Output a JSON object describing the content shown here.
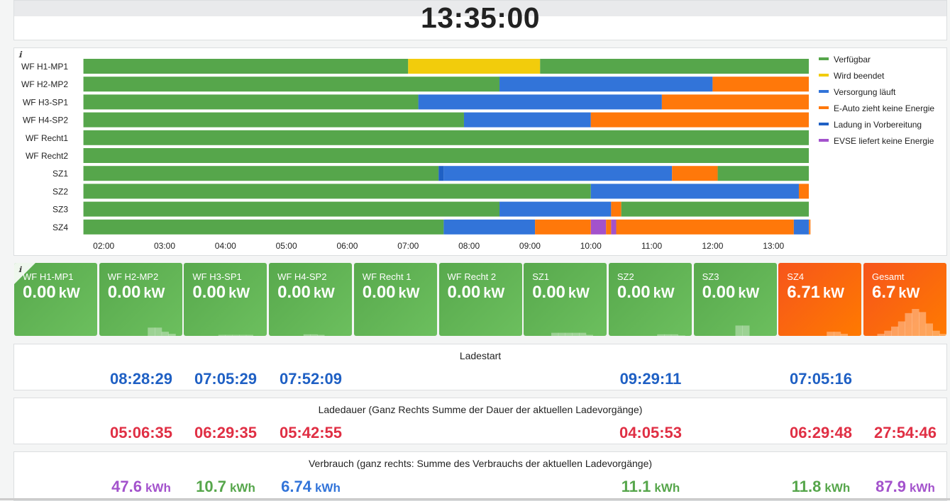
{
  "clock": "13:35:00",
  "info_icon": "ℹ",
  "colors": {
    "verfuegbar": "#56a64b",
    "wird_beendet": "#f2cc0c",
    "versorgung": "#3274d9",
    "keine_energie": "#ff780a",
    "vorbereitung": "#1f60c4",
    "evse": "#a352cc"
  },
  "timeline": {
    "start_hour": 1.66,
    "end_hour": 13.58,
    "ticks": [
      "02:00",
      "03:00",
      "04:00",
      "05:00",
      "06:00",
      "07:00",
      "08:00",
      "09:00",
      "10:00",
      "11:00",
      "12:00",
      "13:00"
    ],
    "legend": [
      {
        "label": "Verfügbar",
        "state": "verfuegbar"
      },
      {
        "label": "Wird beendet",
        "state": "wird_beendet"
      },
      {
        "label": "Versorgung läuft",
        "state": "versorgung"
      },
      {
        "label": "E-Auto zieht keine Energie",
        "state": "keine_energie"
      },
      {
        "label": "Ladung in Vorbereitung",
        "state": "vorbereitung"
      },
      {
        "label": "EVSE liefert keine Energie",
        "state": "evse"
      }
    ],
    "rows": [
      {
        "name": "WF H1-MP1",
        "segments": [
          [
            "01:40",
            "07:00",
            "verfuegbar"
          ],
          [
            "07:00",
            "09:10",
            "wird_beendet"
          ],
          [
            "09:10",
            "13:35",
            "verfuegbar"
          ]
        ]
      },
      {
        "name": "WF H2-MP2",
        "segments": [
          [
            "01:40",
            "08:30",
            "verfuegbar"
          ],
          [
            "08:30",
            "12:00",
            "versorgung"
          ],
          [
            "12:00",
            "13:35",
            "keine_energie"
          ]
        ]
      },
      {
        "name": "WF H3-SP1",
        "segments": [
          [
            "01:40",
            "07:10",
            "verfuegbar"
          ],
          [
            "07:10",
            "11:10",
            "versorgung"
          ],
          [
            "11:10",
            "13:35",
            "keine_energie"
          ]
        ]
      },
      {
        "name": "WF H4-SP2",
        "segments": [
          [
            "01:40",
            "07:55",
            "verfuegbar"
          ],
          [
            "07:55",
            "10:00",
            "versorgung"
          ],
          [
            "10:00",
            "13:35",
            "keine_energie"
          ]
        ]
      },
      {
        "name": "WF Recht1",
        "segments": [
          [
            "01:40",
            "13:35",
            "verfuegbar"
          ]
        ]
      },
      {
        "name": "WF Recht2",
        "segments": [
          [
            "01:40",
            "13:35",
            "verfuegbar"
          ]
        ]
      },
      {
        "name": "SZ1",
        "segments": [
          [
            "01:40",
            "07:30",
            "verfuegbar"
          ],
          [
            "07:30",
            "07:35",
            "vorbereitung"
          ],
          [
            "07:35",
            "11:20",
            "versorgung"
          ],
          [
            "11:20",
            "12:05",
            "keine_energie"
          ],
          [
            "12:05",
            "13:35",
            "verfuegbar"
          ]
        ]
      },
      {
        "name": "SZ2",
        "segments": [
          [
            "01:40",
            "10:00",
            "verfuegbar"
          ],
          [
            "10:00",
            "13:25",
            "versorgung"
          ],
          [
            "13:25",
            "13:35",
            "keine_energie"
          ]
        ]
      },
      {
        "name": "SZ3",
        "segments": [
          [
            "01:40",
            "08:30",
            "verfuegbar"
          ],
          [
            "08:30",
            "10:20",
            "versorgung"
          ],
          [
            "10:20",
            "10:30",
            "keine_energie"
          ],
          [
            "10:30",
            "13:35",
            "verfuegbar"
          ]
        ]
      },
      {
        "name": "SZ4",
        "segments": [
          [
            "01:40",
            "07:35",
            "verfuegbar"
          ],
          [
            "07:35",
            "09:05",
            "versorgung"
          ],
          [
            "09:05",
            "10:00",
            "keine_energie"
          ],
          [
            "10:00",
            "10:15",
            "evse"
          ],
          [
            "10:15",
            "10:20",
            "keine_energie"
          ],
          [
            "10:20",
            "10:25",
            "evse"
          ],
          [
            "10:25",
            "13:20",
            "keine_energie"
          ],
          [
            "13:20",
            "13:35",
            "versorgung"
          ],
          [
            "13:35",
            "13:35",
            "keine_energie"
          ]
        ]
      }
    ]
  },
  "stats": [
    {
      "title": "WF H1-MP1",
      "value": "0.00",
      "unit": "kW",
      "color": "green",
      "spark": [
        0,
        0,
        0,
        0,
        0,
        0,
        0,
        0,
        0,
        0,
        0,
        0
      ]
    },
    {
      "title": "WF H2-MP2",
      "value": "0.00",
      "unit": "kW",
      "color": "green",
      "spark": [
        0,
        0,
        0,
        0,
        0,
        0,
        0,
        0.8,
        0.8,
        0.4,
        0.2,
        0
      ]
    },
    {
      "title": "WF H3-SP1",
      "value": "0.00",
      "unit": "kW",
      "color": "green",
      "spark": [
        0,
        0,
        0,
        0,
        0,
        0.1,
        0.1,
        0.1,
        0.1,
        0.1,
        0,
        0
      ]
    },
    {
      "title": "WF H4-SP2",
      "value": "0.00",
      "unit": "kW",
      "color": "green",
      "spark": [
        0,
        0,
        0,
        0,
        0,
        0.15,
        0.15,
        0.1,
        0,
        0,
        0,
        0
      ]
    },
    {
      "title": "WF Recht 1",
      "value": "0.00",
      "unit": "kW",
      "color": "green",
      "spark": [
        0,
        0,
        0,
        0,
        0,
        0,
        0,
        0,
        0,
        0,
        0,
        0
      ]
    },
    {
      "title": "WF Recht 2",
      "value": "0.00",
      "unit": "kW",
      "color": "green",
      "spark": [
        0,
        0,
        0,
        0,
        0,
        0,
        0,
        0,
        0,
        0,
        0,
        0
      ]
    },
    {
      "title": "SZ1",
      "value": "0.00",
      "unit": "kW",
      "color": "green",
      "spark": [
        0,
        0,
        0,
        0,
        0.3,
        0.3,
        0.3,
        0.3,
        0.3,
        0.1,
        0,
        0
      ]
    },
    {
      "title": "SZ2",
      "value": "0.00",
      "unit": "kW",
      "color": "green",
      "spark": [
        0,
        0,
        0,
        0,
        0,
        0,
        0,
        0.15,
        0.15,
        0.15,
        0.05,
        0
      ]
    },
    {
      "title": "SZ3",
      "value": "0.00",
      "unit": "kW",
      "color": "green",
      "spark": [
        0,
        0,
        0,
        0,
        0,
        0,
        1,
        1,
        0,
        0,
        0,
        0
      ]
    },
    {
      "title": "SZ4",
      "value": "6.71",
      "unit": "kW",
      "color": "orange",
      "spark": [
        0,
        0,
        0,
        0,
        0,
        0,
        0,
        0.4,
        0.4,
        0.2,
        0,
        0
      ]
    },
    {
      "title": "Gesamt",
      "value": "6.7",
      "unit": "kW",
      "color": "orange",
      "spark": [
        0,
        0,
        0.2,
        0.5,
        0.9,
        1.4,
        2.2,
        2.6,
        2.3,
        1.2,
        0.5,
        0.2
      ]
    }
  ],
  "ladestart": {
    "title": "Ladestart",
    "values": [
      "08:28:29",
      "07:05:29",
      "07:52:09",
      "",
      "",
      "",
      "09:29:11",
      "",
      "07:05:16",
      ""
    ]
  },
  "ladedauer": {
    "title": "Ladedauer (Ganz Rechts Summe der Dauer der aktuellen Ladevorgänge)",
    "values": [
      "05:06:35",
      "06:29:35",
      "05:42:55",
      "",
      "",
      "",
      "04:05:53",
      "",
      "06:29:48",
      "27:54:46"
    ]
  },
  "verbrauch": {
    "title": "Verbrauch (ganz rechts: Summe des Verbrauchs der aktuellen Ladevorgänge)",
    "unit": "kWh",
    "values": [
      "47.6",
      "10.7",
      "6.74",
      "",
      "",
      "",
      "11.1",
      "",
      "11.8",
      "87.9"
    ],
    "value_colors": [
      "purple",
      "green",
      "blue",
      "",
      "",
      "",
      "green",
      "",
      "green",
      "purple"
    ]
  }
}
